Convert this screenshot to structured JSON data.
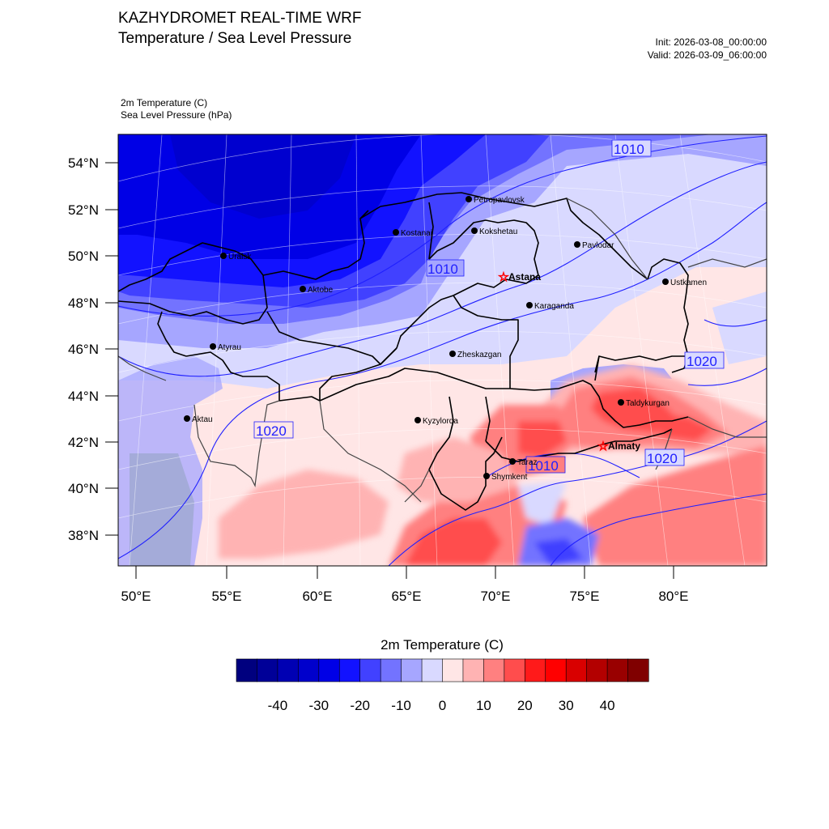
{
  "header": {
    "title": "KAZHYDROMET REAL-TIME WRF",
    "subtitle": "Temperature / Sea Level Pressure",
    "init": "Init: 2026-03-08_00:00:00",
    "valid": "Valid: 2026-03-09_06:00:00"
  },
  "fields": {
    "temperature": "2m Temperature   (C)",
    "pressure": "Sea Level Pressure   (hPa)"
  },
  "axes": {
    "lat_labels": [
      "54°N",
      "52°N",
      "50°N",
      "48°N",
      "46°N",
      "44°N",
      "42°N",
      "40°N",
      "38°N"
    ],
    "lon_labels": [
      "50°E",
      "55°E",
      "60°E",
      "65°E",
      "70°E",
      "75°E",
      "80°E"
    ]
  },
  "cities": [
    {
      "name": "Petropavlovsk",
      "lon": 69.1,
      "lat": 54.9,
      "capital": false
    },
    {
      "name": "Kokshetau",
      "lon": 69.4,
      "lat": 53.3,
      "capital": false
    },
    {
      "name": "Kostanai",
      "lon": 63.6,
      "lat": 53.2,
      "capital": false
    },
    {
      "name": "Uralsk",
      "lon": 51.4,
      "lat": 51.2,
      "capital": false
    },
    {
      "name": "Aktobe",
      "lon": 57.2,
      "lat": 50.3,
      "capital": false
    },
    {
      "name": "Pavlodar",
      "lon": 76.9,
      "lat": 52.3,
      "capital": false
    },
    {
      "name": "Ustkamen",
      "lon": 82.6,
      "lat": 49.9,
      "capital": false
    },
    {
      "name": "Astana",
      "lon": 71.4,
      "lat": 51.1,
      "capital": true
    },
    {
      "name": "Karaganda",
      "lon": 73.1,
      "lat": 49.8,
      "capital": false
    },
    {
      "name": "Atyrau",
      "lon": 51.9,
      "lat": 47.1,
      "capital": false
    },
    {
      "name": "Zheskazgan",
      "lon": 67.7,
      "lat": 47.8,
      "capital": false
    },
    {
      "name": "Aktau",
      "lon": 51.2,
      "lat": 43.6,
      "capital": false
    },
    {
      "name": "Kyzylorda",
      "lon": 65.5,
      "lat": 44.8,
      "capital": false
    },
    {
      "name": "Taldykurgan",
      "lon": 78.4,
      "lat": 45.0,
      "capital": false
    },
    {
      "name": "Almaty",
      "lon": 76.9,
      "lat": 43.2,
      "capital": true
    },
    {
      "name": "Taraz",
      "lon": 71.4,
      "lat": 42.9,
      "capital": false
    },
    {
      "name": "Shymkent",
      "lon": 69.6,
      "lat": 42.3,
      "capital": false
    }
  ],
  "isobar_labels": [
    "1010",
    "1010",
    "1020",
    "1020",
    "1010",
    "1020"
  ],
  "colorbar": {
    "title": "2m Temperature  (C)",
    "ticks": [
      "-40",
      "-30",
      "-20",
      "-10",
      "0",
      "10",
      "20",
      "30",
      "40"
    ],
    "colors": [
      "#00007f",
      "#000098",
      "#0000b3",
      "#0000cc",
      "#0000e6",
      "#1212ff",
      "#4141ff",
      "#7373ff",
      "#a6a6ff",
      "#d9d9ff",
      "#ffe6e6",
      "#ffb3b3",
      "#ff8080",
      "#ff4d4d",
      "#ff1a1a",
      "#ff0000",
      "#d90000",
      "#b30000",
      "#990000",
      "#800000"
    ]
  }
}
